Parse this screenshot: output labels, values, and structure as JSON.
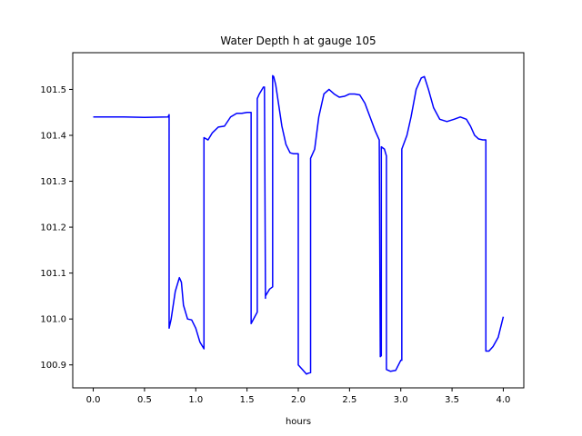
{
  "chart_data": {
    "type": "line",
    "title": "Water Depth h at gauge 105",
    "xlabel": "hours",
    "ylabel": "",
    "xlim": [
      -0.2,
      4.2
    ],
    "ylim": [
      100.85,
      101.58
    ],
    "grid": false,
    "legend": "none",
    "x_ticks": [
      0.0,
      0.5,
      1.0,
      1.5,
      2.0,
      2.5,
      3.0,
      3.5,
      4.0
    ],
    "x_tick_labels": [
      "0.0",
      "0.5",
      "1.0",
      "1.5",
      "2.0",
      "2.5",
      "3.0",
      "3.5",
      "4.0"
    ],
    "y_ticks": [
      100.9,
      101.0,
      101.1,
      101.2,
      101.3,
      101.4,
      101.5
    ],
    "y_tick_labels": [
      "100.9",
      "101.0",
      "101.1",
      "101.2",
      "101.3",
      "101.4",
      "101.5"
    ],
    "series": [
      {
        "color": "#0000ff",
        "x": [
          0.0,
          0.3,
          0.5,
          0.73,
          0.74,
          0.74,
          0.76,
          0.8,
          0.84,
          0.86,
          0.88,
          0.92,
          0.96,
          1.0,
          1.04,
          1.08,
          1.08,
          1.12,
          1.16,
          1.22,
          1.28,
          1.34,
          1.4,
          1.45,
          1.5,
          1.54,
          1.54,
          1.6,
          1.6,
          1.62,
          1.62,
          1.66,
          1.67,
          1.68,
          1.68,
          1.72,
          1.75,
          1.75,
          1.76,
          1.78,
          1.8,
          1.84,
          1.88,
          1.92,
          1.95,
          2.0,
          2.0,
          2.04,
          2.08,
          2.1,
          2.12,
          2.12,
          2.16,
          2.2,
          2.25,
          2.3,
          2.35,
          2.4,
          2.45,
          2.5,
          2.55,
          2.6,
          2.65,
          2.7,
          2.75,
          2.79,
          2.8,
          2.8,
          2.81,
          2.81,
          2.84,
          2.86,
          2.86,
          2.9,
          2.95,
          3.0,
          3.01,
          3.01,
          3.06,
          3.1,
          3.15,
          3.2,
          3.23,
          3.27,
          3.32,
          3.38,
          3.45,
          3.52,
          3.58,
          3.64,
          3.68,
          3.72,
          3.76,
          3.8,
          3.83,
          3.83,
          3.86,
          3.9,
          3.95,
          4.0
        ],
        "y": [
          101.44,
          101.44,
          101.439,
          101.44,
          101.445,
          100.98,
          101.0,
          101.06,
          101.09,
          101.08,
          101.03,
          101.0,
          100.998,
          100.98,
          100.95,
          100.935,
          101.395,
          101.39,
          101.405,
          101.418,
          101.42,
          101.44,
          101.448,
          101.448,
          101.45,
          101.45,
          100.99,
          101.015,
          101.48,
          101.49,
          101.49,
          101.505,
          101.505,
          101.045,
          101.05,
          101.065,
          101.07,
          101.53,
          101.528,
          101.51,
          101.48,
          101.42,
          101.38,
          101.362,
          101.36,
          101.36,
          100.9,
          100.89,
          100.88,
          100.882,
          100.883,
          101.35,
          101.37,
          101.44,
          101.49,
          101.5,
          101.49,
          101.483,
          101.485,
          101.49,
          101.49,
          101.488,
          101.47,
          101.44,
          101.41,
          101.39,
          100.92,
          100.918,
          100.92,
          101.375,
          101.37,
          101.355,
          100.89,
          100.886,
          100.888,
          100.91,
          100.91,
          101.37,
          101.4,
          101.44,
          101.5,
          101.525,
          101.528,
          101.5,
          101.46,
          101.435,
          101.43,
          101.435,
          101.44,
          101.435,
          101.42,
          101.4,
          101.392,
          101.39,
          101.39,
          100.93,
          100.93,
          100.94,
          100.96,
          101.005
        ]
      }
    ]
  }
}
